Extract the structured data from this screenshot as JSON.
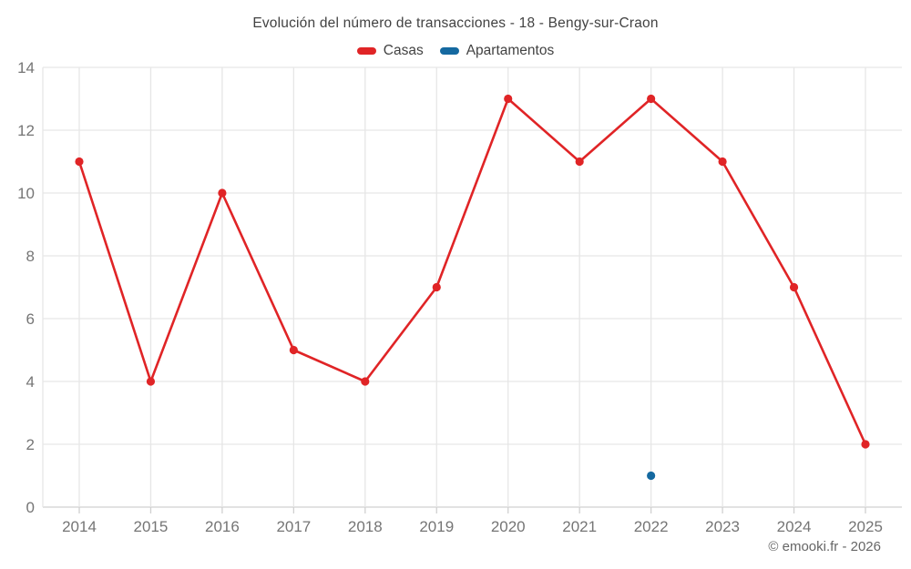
{
  "chart_data": {
    "type": "line",
    "title": "Evolución del número de transacciones - 18 - Bengy-sur-Craon",
    "categories": [
      2014,
      2015,
      2016,
      2017,
      2018,
      2019,
      2020,
      2021,
      2022,
      2023,
      2024,
      2025
    ],
    "series": [
      {
        "name": "Casas",
        "color": "#e02426",
        "values": [
          11,
          4,
          10,
          5,
          4,
          7,
          13,
          11,
          13,
          11,
          7,
          2
        ]
      },
      {
        "name": "Apartamentos",
        "color": "#1569a0",
        "values": [
          null,
          null,
          null,
          null,
          null,
          null,
          null,
          null,
          1,
          null,
          null,
          null
        ]
      }
    ],
    "xlabel": "",
    "ylabel": "",
    "ylim": [
      0,
      14
    ],
    "yticks": [
      0,
      2,
      4,
      6,
      8,
      10,
      12,
      14
    ],
    "grid": true,
    "legend_position": "top",
    "colors": {
      "grid_line": "#e6e6e6",
      "axis_line": "#d0d0d0",
      "tick_text": "#757575",
      "title_text": "#424242"
    }
  },
  "attribution": "© emooki.fr - 2026"
}
